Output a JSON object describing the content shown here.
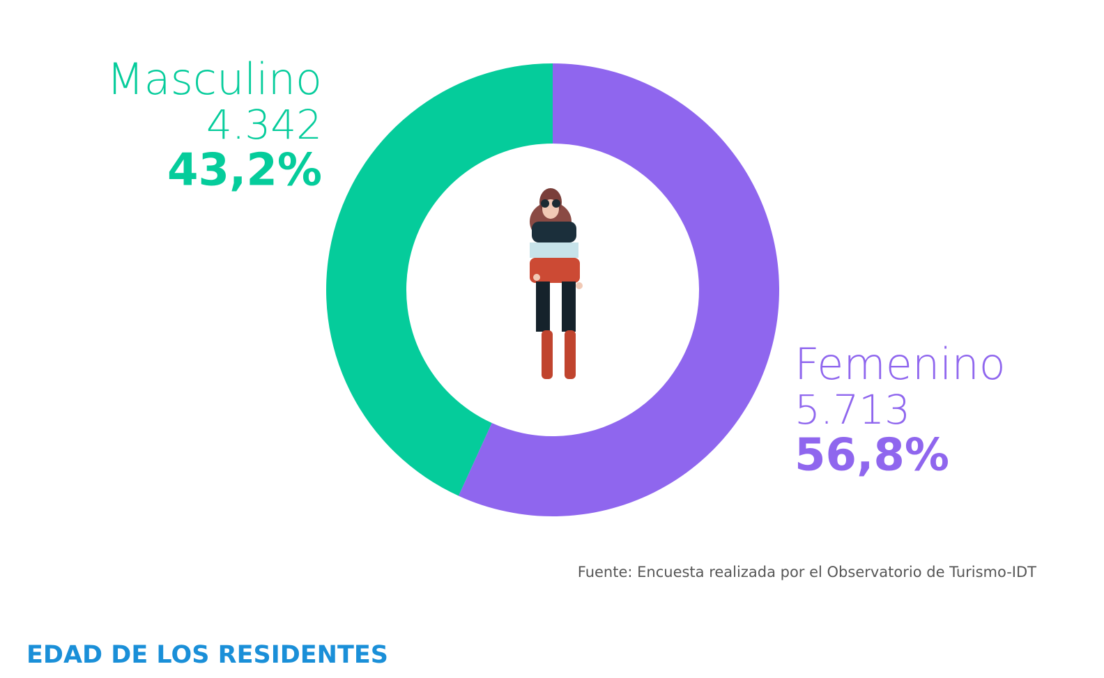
{
  "chart_data": {
    "type": "donut",
    "categories": [
      "Masculino",
      "Femenino"
    ],
    "values": [
      4342,
      5713
    ],
    "value_labels": [
      "4.342",
      "5.713"
    ],
    "percents": [
      43.2,
      56.8
    ],
    "percent_labels": [
      "43,2%",
      "56,8%"
    ],
    "colors": [
      "#05cc9b",
      "#8f66ee"
    ],
    "source": "Fuente: Encuesta realizada por el Observatorio de Turismo-IDT"
  },
  "heading": "EDAD DE LOS RESIDENTES"
}
